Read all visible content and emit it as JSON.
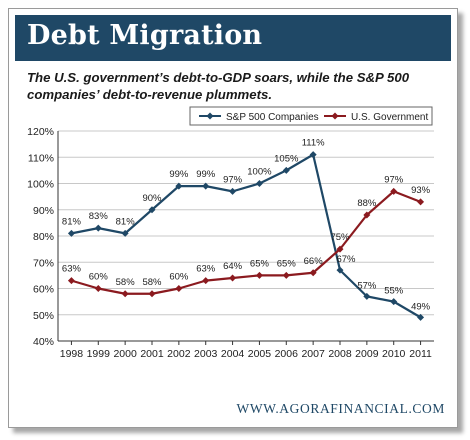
{
  "header": {
    "title": "Debt Migration",
    "subtitle": "The U.S. government’s debt-to-GDP soars, while the S&P 500 companies’ debt-to-revenue plummets."
  },
  "footer": {
    "text": "WWW.AGORAFINANCIAL.COM"
  },
  "chart_data": {
    "type": "line",
    "x": [
      "1998",
      "1999",
      "2000",
      "2001",
      "2002",
      "2003",
      "2004",
      "2005",
      "2006",
      "2007",
      "2008",
      "2009",
      "2010",
      "2011"
    ],
    "ylim": [
      40,
      120
    ],
    "yticks": [
      40,
      50,
      60,
      70,
      80,
      90,
      100,
      110,
      120
    ],
    "ytick_labels": [
      "40%",
      "50%",
      "60%",
      "70%",
      "80%",
      "90%",
      "100%",
      "110%",
      "120%"
    ],
    "grid": "horizontal",
    "legend_position": "top-right",
    "series": [
      {
        "name": "S&P 500 Companies",
        "color": "#1f4866",
        "values": [
          81,
          83,
          81,
          90,
          99,
          99,
          97,
          100,
          105,
          111,
          67,
          57,
          55,
          49
        ],
        "labels": [
          "81%",
          "83%",
          "81%",
          "90%",
          "99%",
          "99%",
          "97%",
          "100%",
          "105%",
          "111%",
          "67%",
          "57%",
          "55%",
          "49%"
        ]
      },
      {
        "name": "U.S. Government",
        "color": "#8b1a1f",
        "values": [
          63,
          60,
          58,
          58,
          60,
          63,
          64,
          65,
          65,
          66,
          75,
          88,
          97,
          93
        ],
        "labels": [
          "63%",
          "60%",
          "58%",
          "58%",
          "60%",
          "63%",
          "64%",
          "65%",
          "65%",
          "66%",
          "75%",
          "88%",
          "97%",
          "93%"
        ]
      }
    ]
  }
}
